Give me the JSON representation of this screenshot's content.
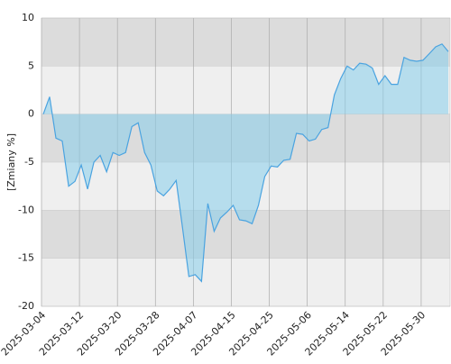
{
  "chart_data": {
    "type": "area",
    "y_label": "[Zmiany %]",
    "categories": [
      "2025-03-04",
      null,
      null,
      null,
      null,
      null,
      "2025-03-12",
      null,
      null,
      null,
      null,
      null,
      "2025-03-20",
      null,
      null,
      null,
      null,
      null,
      "2025-03-28",
      null,
      null,
      null,
      null,
      null,
      "2025-04-07",
      null,
      null,
      null,
      null,
      null,
      "2025-04-15",
      null,
      null,
      null,
      null,
      null,
      "2025-04-25",
      null,
      null,
      null,
      null,
      null,
      "2025-05-06",
      null,
      null,
      null,
      null,
      null,
      "2025-05-14",
      null,
      null,
      null,
      null,
      null,
      "2025-05-22",
      null,
      null,
      null,
      null,
      null,
      "2025-05-30",
      null,
      null,
      null,
      null
    ],
    "values": [
      0,
      1.8,
      -2.5,
      -2.8,
      -7.5,
      -7,
      -5.3,
      -7.8,
      -5,
      -4.3,
      -6,
      -4,
      -4.3,
      -4,
      -1.3,
      -0.9,
      -4,
      -5.3,
      -8,
      -8.5,
      -7.8,
      -6.9,
      -11.8,
      -16.9,
      -16.7,
      -17.4,
      -9.3,
      -12.2,
      -10.8,
      -10.2,
      -9.5,
      -11,
      -11.1,
      -11.4,
      -9.5,
      -6.5,
      -5.4,
      -5.5,
      -4.8,
      -4.7,
      -2,
      -2.1,
      -2.8,
      -2.6,
      -1.6,
      -1.4,
      2,
      3.7,
      5,
      4.6,
      5.3,
      5.2,
      4.8,
      3.1,
      4,
      3.1,
      3.1,
      5.9,
      5.6,
      5.5,
      5.6,
      6.3,
      7,
      7.3,
      6.5
    ],
    "color": "#4aa3e0",
    "fill_color": "#87ceeb",
    "band_colors": [
      "#dcdcdc",
      "#efefef"
    ],
    "ylim": [
      -20,
      10
    ],
    "yticks": [
      10,
      5,
      0,
      -5,
      -10,
      -15,
      -20
    ],
    "grid": true
  }
}
